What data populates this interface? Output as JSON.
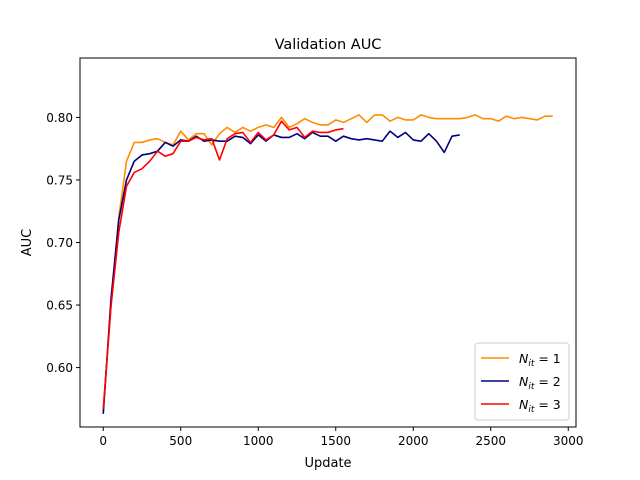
{
  "chart_data": {
    "type": "line",
    "title": "Validation AUC",
    "xlabel": "Update",
    "ylabel": "AUC",
    "xlim": [
      -150,
      3050
    ],
    "ylim": [
      0.5525,
      0.8475
    ],
    "xticks": [
      0,
      500,
      1000,
      1500,
      2000,
      2500,
      3000
    ],
    "yticks": [
      0.6,
      0.65,
      0.7,
      0.75,
      0.8
    ],
    "xtick_labels": [
      "0",
      "500",
      "1000",
      "1500",
      "2000",
      "2500",
      "3000"
    ],
    "ytick_labels": [
      "0.60",
      "0.65",
      "0.70",
      "0.75",
      "0.80"
    ],
    "grid": false,
    "legend_position": "lower-right",
    "series": [
      {
        "name": "N_it = 1",
        "label_base": "N",
        "label_sub": "it",
        "label_rest": " = 1",
        "color": "#ff8c00",
        "x": [
          0,
          50,
          100,
          150,
          200,
          250,
          300,
          350,
          400,
          450,
          500,
          550,
          600,
          650,
          700,
          750,
          800,
          850,
          900,
          950,
          1000,
          1050,
          1100,
          1150,
          1200,
          1250,
          1300,
          1350,
          1400,
          1450,
          1500,
          1550,
          1600,
          1650,
          1700,
          1750,
          1800,
          1850,
          1900,
          1950,
          2000,
          2050,
          2100,
          2150,
          2200,
          2250,
          2300,
          2350,
          2400,
          2450,
          2500,
          2550,
          2600,
          2650,
          2700,
          2750,
          2800,
          2850,
          2900
        ],
        "y": [
          0.565,
          0.65,
          0.72,
          0.765,
          0.78,
          0.78,
          0.782,
          0.783,
          0.78,
          0.778,
          0.789,
          0.782,
          0.787,
          0.787,
          0.778,
          0.787,
          0.792,
          0.788,
          0.792,
          0.789,
          0.792,
          0.794,
          0.792,
          0.8,
          0.792,
          0.795,
          0.799,
          0.796,
          0.794,
          0.794,
          0.798,
          0.796,
          0.799,
          0.802,
          0.796,
          0.802,
          0.802,
          0.797,
          0.8,
          0.798,
          0.798,
          0.802,
          0.8,
          0.799,
          0.799,
          0.799,
          0.799,
          0.8,
          0.802,
          0.799,
          0.799,
          0.797,
          0.801,
          0.799,
          0.8,
          0.799,
          0.798,
          0.801,
          0.801
        ]
      },
      {
        "name": "N_it = 2",
        "label_base": "N",
        "label_sub": "it",
        "label_rest": " = 2",
        "color": "#00007f",
        "x": [
          0,
          50,
          100,
          150,
          200,
          250,
          300,
          350,
          400,
          450,
          500,
          550,
          600,
          650,
          700,
          750,
          800,
          850,
          900,
          950,
          1000,
          1050,
          1100,
          1150,
          1200,
          1250,
          1300,
          1350,
          1400,
          1450,
          1500,
          1550,
          1600,
          1650,
          1700,
          1750,
          1800,
          1850,
          1900,
          1950,
          2000,
          2050,
          2100,
          2150,
          2200,
          2250,
          2300
        ],
        "y": [
          0.563,
          0.655,
          0.718,
          0.75,
          0.765,
          0.77,
          0.771,
          0.773,
          0.78,
          0.777,
          0.782,
          0.781,
          0.785,
          0.781,
          0.782,
          0.781,
          0.781,
          0.785,
          0.784,
          0.779,
          0.786,
          0.781,
          0.786,
          0.784,
          0.784,
          0.787,
          0.783,
          0.788,
          0.785,
          0.785,
          0.781,
          0.785,
          0.783,
          0.782,
          0.783,
          0.782,
          0.781,
          0.789,
          0.784,
          0.788,
          0.782,
          0.781,
          0.787,
          0.781,
          0.772,
          0.785,
          0.786
        ]
      },
      {
        "name": "N_it = 3",
        "label_base": "N",
        "label_sub": "it",
        "label_rest": " = 3",
        "color": "#ff0000",
        "x": [
          0,
          50,
          100,
          150,
          200,
          250,
          300,
          350,
          400,
          450,
          500,
          550,
          600,
          650,
          700,
          750,
          800,
          850,
          900,
          950,
          1000,
          1050,
          1100,
          1150,
          1200,
          1250,
          1300,
          1350,
          1400,
          1450,
          1500,
          1550
        ],
        "y": [
          0.567,
          0.649,
          0.708,
          0.745,
          0.756,
          0.759,
          0.765,
          0.773,
          0.769,
          0.771,
          0.781,
          0.781,
          0.784,
          0.782,
          0.783,
          0.766,
          0.783,
          0.787,
          0.788,
          0.78,
          0.788,
          0.782,
          0.786,
          0.797,
          0.79,
          0.792,
          0.784,
          0.789,
          0.788,
          0.788,
          0.79,
          0.791
        ]
      }
    ]
  }
}
